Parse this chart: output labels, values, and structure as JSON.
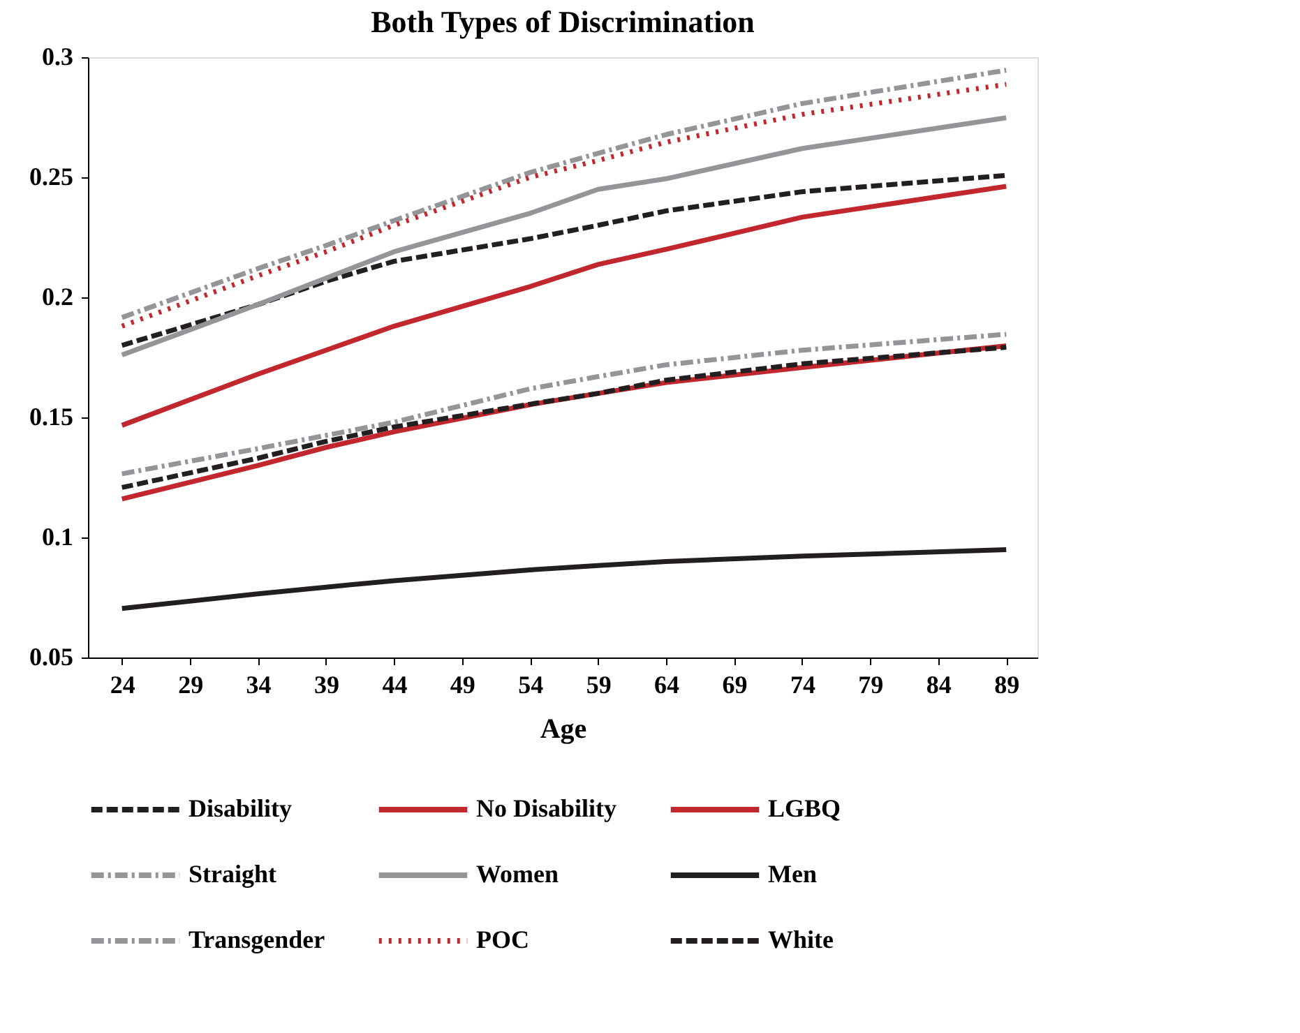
{
  "chart_data": {
    "type": "line",
    "title": "Both Types of Discrimination",
    "xlabel": "Age",
    "x": [
      24,
      34,
      39,
      44,
      54,
      59,
      64,
      74,
      89
    ],
    "series": [
      {
        "name": "Disability",
        "color": "#231f20",
        "line_style": "dashed",
        "values": [
          0.18,
          0.197,
          0.2067,
          0.215,
          0.2244,
          0.23,
          0.236,
          0.244,
          0.2508
        ]
      },
      {
        "name": "No Disability",
        "color": "#c1272d",
        "line_style": "solid",
        "values": [
          0.116,
          0.13,
          0.1375,
          0.144,
          0.1553,
          0.16,
          0.1645,
          0.1708,
          0.1798
        ]
      },
      {
        "name": "LGBQ",
        "color": "#c1272d",
        "line_style": "solid",
        "values": [
          0.1467,
          0.168,
          0.178,
          0.188,
          0.2045,
          0.2137,
          0.22,
          0.2334,
          0.2462
        ]
      },
      {
        "name": "Straight",
        "color": "#939598",
        "line_style": "dashdot",
        "values": [
          0.1265,
          0.137,
          0.1425,
          0.148,
          0.1619,
          0.167,
          0.1719,
          0.178,
          0.1846
        ]
      },
      {
        "name": "Women",
        "color": "#939598",
        "line_style": "solid",
        "values": [
          0.176,
          0.197,
          0.208,
          0.219,
          0.235,
          0.245,
          0.2494,
          0.262,
          0.2748
        ]
      },
      {
        "name": "Men",
        "color": "#231f20",
        "line_style": "solid",
        "values": [
          0.0704,
          0.0765,
          0.0793,
          0.082,
          0.0865,
          0.0883,
          0.09,
          0.0922,
          0.0949
        ]
      },
      {
        "name": "Transgender",
        "color": "#939598",
        "line_style": "dashdot",
        "values": [
          0.1916,
          0.212,
          0.2216,
          0.232,
          0.252,
          0.26,
          0.2678,
          0.2807,
          0.2946
        ]
      },
      {
        "name": "POC",
        "color": "#c1272d",
        "line_style": "dotted",
        "values": [
          0.188,
          0.209,
          0.219,
          0.23,
          0.25,
          0.257,
          0.2646,
          0.2762,
          0.2887
        ]
      },
      {
        "name": "White",
        "color": "#231f20",
        "line_style": "dashed",
        "values": [
          0.1208,
          0.133,
          0.14,
          0.146,
          0.1555,
          0.16,
          0.1655,
          0.1723,
          0.1792
        ]
      }
    ],
    "xlim": [
      21.5,
      91.3
    ],
    "xticks": [
      24,
      29,
      34,
      39,
      44,
      49,
      54,
      59,
      64,
      69,
      74,
      79,
      84,
      89
    ],
    "ylim": [
      0.05,
      0.3
    ],
    "yticks": [
      0.05,
      0.1,
      0.15,
      0.2,
      0.25,
      0.3
    ],
    "grid": false,
    "legend": "bottom",
    "marker": "none"
  }
}
